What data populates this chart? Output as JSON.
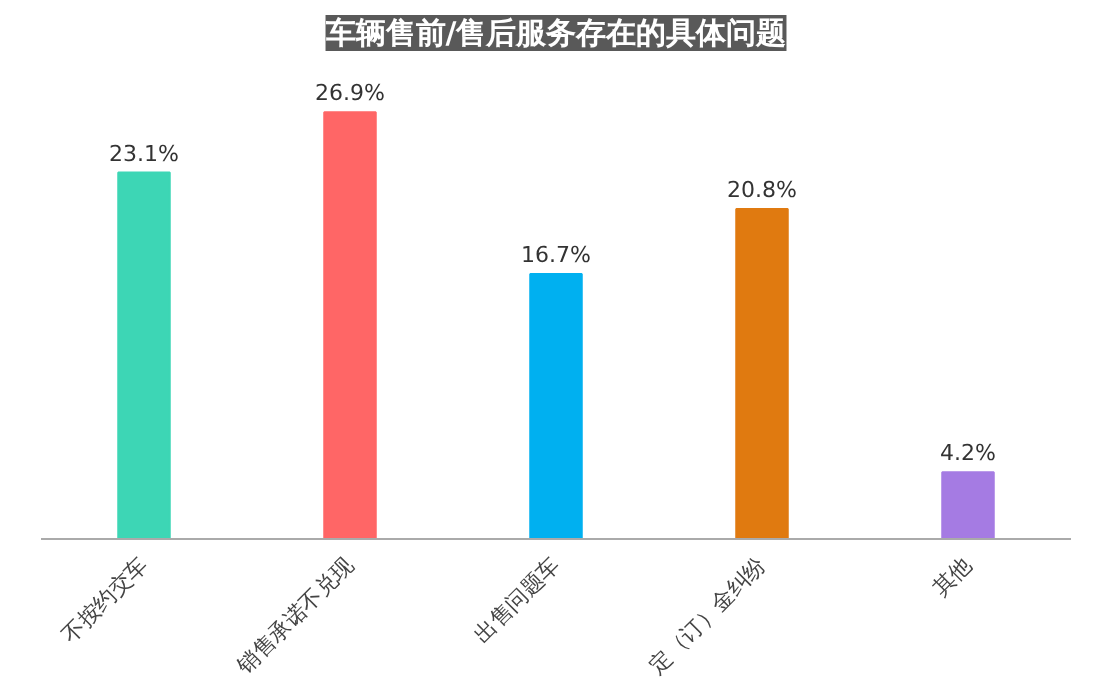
{
  "chart_data": {
    "type": "bar",
    "title": "车辆售前/售后服务存在的具体问题",
    "categories": [
      "不按约交车",
      "销售承诺不兑现",
      "出售问题车",
      "定（订）金纠纷",
      "其他"
    ],
    "values": [
      23.1,
      26.9,
      16.7,
      20.8,
      4.2
    ],
    "colors": [
      "#3dd6b5",
      "#ff6666",
      "#00b0f0",
      "#e07a10",
      "#a57be3"
    ],
    "value_labels": [
      "23.1%",
      "26.9%",
      "16.7%",
      "20.8%",
      "4.2%"
    ],
    "grid": false
  }
}
